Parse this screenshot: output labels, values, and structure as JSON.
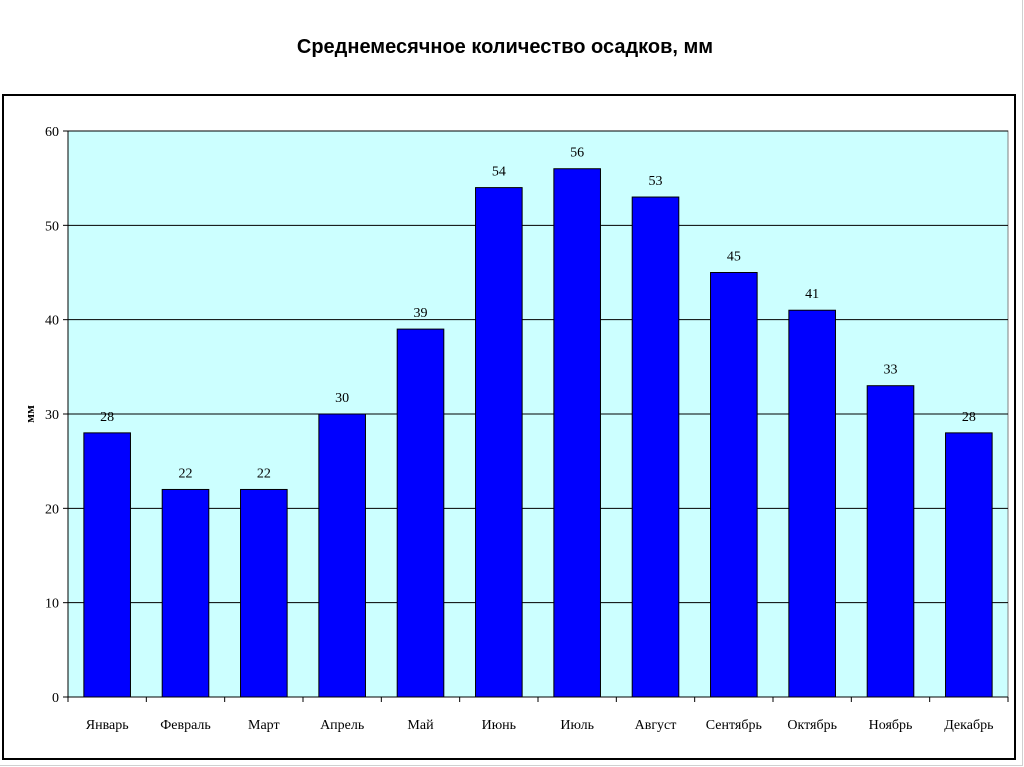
{
  "chart_data": {
    "type": "bar",
    "title": "Среднемесячное количество осадков, мм",
    "xlabel": "",
    "ylabel": "мм",
    "ylim": [
      0,
      60
    ],
    "yticks": [
      0,
      10,
      20,
      30,
      40,
      50,
      60
    ],
    "grid": true,
    "legend": "none",
    "categories": [
      "Январь",
      "Февраль",
      "Март",
      "Апрель",
      "Май",
      "Июнь",
      "Июль",
      "Август",
      "Сентябрь",
      "Октябрь",
      "Ноябрь",
      "Декабрь"
    ],
    "values": [
      28,
      22,
      22,
      30,
      39,
      54,
      56,
      53,
      45,
      41,
      33,
      28
    ],
    "colors": {
      "bar": "#0000ff",
      "plot_bg": "#ccffff",
      "grid": "#000000"
    }
  }
}
